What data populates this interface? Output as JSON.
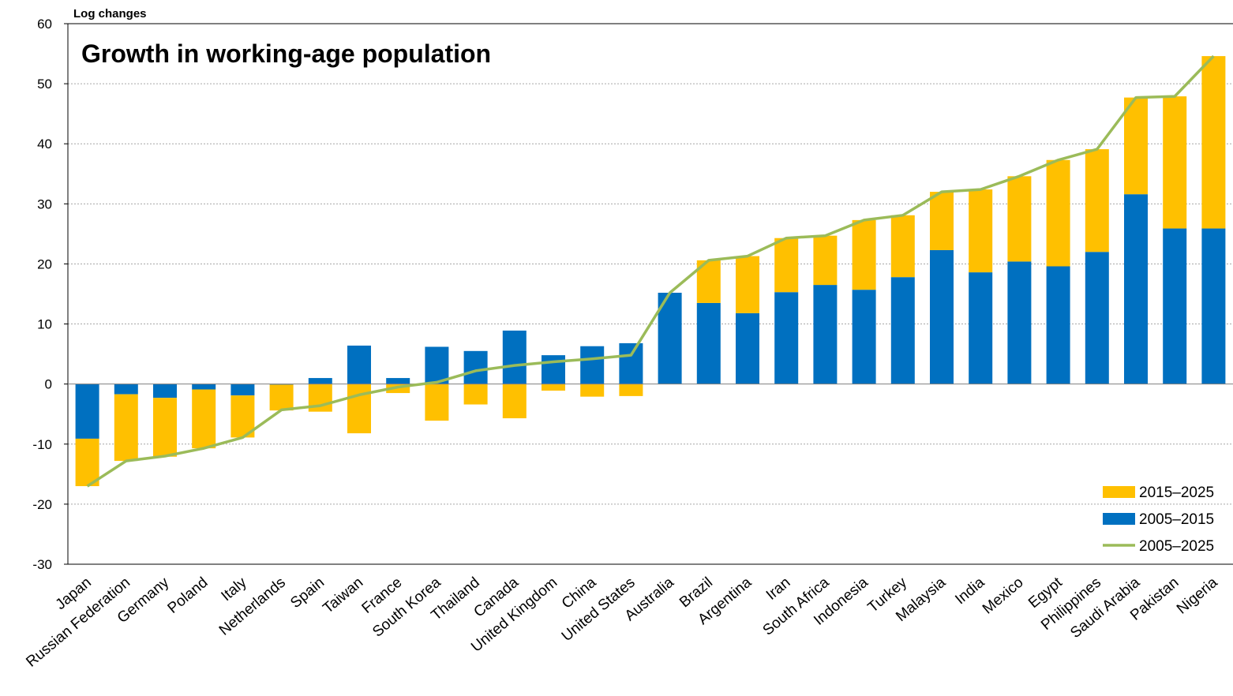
{
  "chart_data": {
    "type": "bar",
    "stacked": true,
    "title": "Growth in working-age population",
    "ylabel": "Log changes",
    "xlabel": "",
    "ylim": [
      -30,
      60
    ],
    "yticks": [
      60,
      50,
      40,
      30,
      20,
      10,
      0,
      -10,
      -20,
      -30
    ],
    "grid": true,
    "legend_position": "bottom-right",
    "categories": [
      "Japan",
      "Russian Federation",
      "Germany",
      "Poland",
      "Italy",
      "Netherlands",
      "Spain",
      "Taiwan",
      "France",
      "South Korea",
      "Thailand",
      "Canada",
      "United Kingdom",
      "China",
      "United States",
      "Australia",
      "Brazil",
      "Argentina",
      "Iran",
      "South Africa",
      "Indonesia",
      "Turkey",
      "Malaysia",
      "India",
      "Mexico",
      "Egypt",
      "Philippines",
      "Saudi Arabia",
      "Pakistan",
      "Nigeria"
    ],
    "series": [
      {
        "name": "2005–2015",
        "type": "bar",
        "color": "#0070c0",
        "values": [
          -9.1,
          -1.7,
          -2.3,
          -0.9,
          -1.9,
          -0.1,
          1.0,
          6.4,
          1.0,
          6.2,
          5.5,
          8.9,
          4.8,
          6.3,
          6.8,
          15.2,
          13.5,
          11.8,
          15.3,
          16.5,
          15.7,
          17.8,
          22.3,
          18.6,
          20.4,
          19.6,
          22.0,
          31.6,
          25.9,
          25.9
        ]
      },
      {
        "name": "2015–2025",
        "type": "bar",
        "color": "#ffc000",
        "values": [
          -7.9,
          -11.1,
          -9.8,
          -9.8,
          -7.0,
          -4.3,
          -4.6,
          -8.2,
          -1.5,
          -6.1,
          -3.4,
          -5.7,
          -1.1,
          -2.1,
          -2.0,
          0.0,
          7.1,
          9.5,
          9.0,
          8.2,
          11.6,
          10.3,
          9.7,
          13.8,
          14.2,
          17.7,
          17.1,
          16.1,
          22.0,
          28.7
        ]
      },
      {
        "name": "2005–2025",
        "type": "line",
        "color": "#9bbb59",
        "values": [
          -17.0,
          -12.8,
          -12.0,
          -10.7,
          -8.9,
          -4.3,
          -3.6,
          -1.8,
          -0.5,
          0.3,
          2.2,
          3.1,
          3.7,
          4.2,
          4.8,
          15.2,
          20.6,
          21.3,
          24.3,
          24.7,
          27.3,
          28.1,
          32.0,
          32.4,
          34.6,
          37.3,
          39.1,
          47.7,
          47.9,
          54.6
        ]
      }
    ]
  }
}
